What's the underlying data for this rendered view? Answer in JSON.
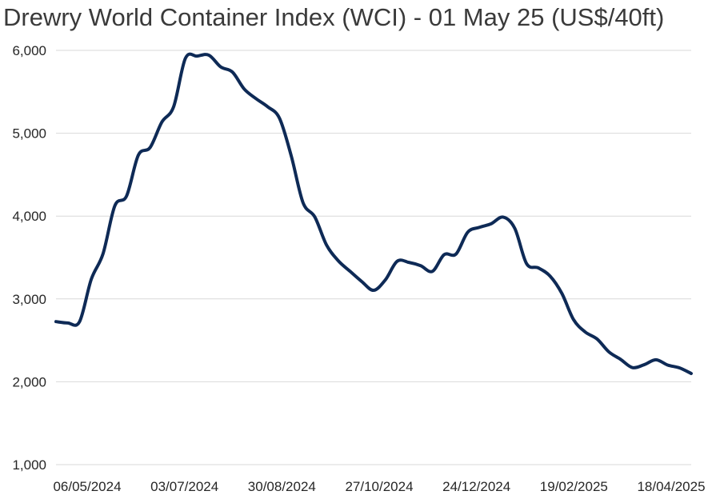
{
  "chart_data": {
    "type": "line",
    "title": "Drewry World Container Index (WCI) - 01 May 25 (US$/40ft)",
    "xlabel": "",
    "ylabel": "",
    "ylim": [
      1000,
      6000
    ],
    "y_ticks": [
      1000,
      2000,
      3000,
      4000,
      5000,
      6000
    ],
    "y_tick_labels": [
      "1,000",
      "2,000",
      "3,000",
      "4,000",
      "5,000",
      "6,000"
    ],
    "x_tick_labels": [
      "06/05/2024",
      "03/07/2024",
      "30/08/2024",
      "27/10/2024",
      "24/12/2024",
      "19/02/2025",
      "18/04/2025"
    ],
    "grid": true,
    "legend": "none",
    "colors": {
      "line": "#0e2a56",
      "grid": "#d9d9d9"
    },
    "series": [
      {
        "values": [
          2726,
          2710,
          2725,
          3238,
          3546,
          4124,
          4243,
          4735,
          4828,
          5135,
          5320,
          5904,
          5931,
          5942,
          5801,
          5738,
          5534,
          5418,
          5319,
          5181,
          4726,
          4162,
          3990,
          3650,
          3460,
          3333,
          3209,
          3104,
          3230,
          3454,
          3441,
          3401,
          3333,
          3535,
          3541,
          3805,
          3864,
          3908,
          3988,
          3852,
          3427,
          3375,
          3276,
          3068,
          2750,
          2600,
          2516,
          2361,
          2270,
          2171,
          2206,
          2266,
          2202,
          2168,
          2100
        ]
      }
    ]
  }
}
